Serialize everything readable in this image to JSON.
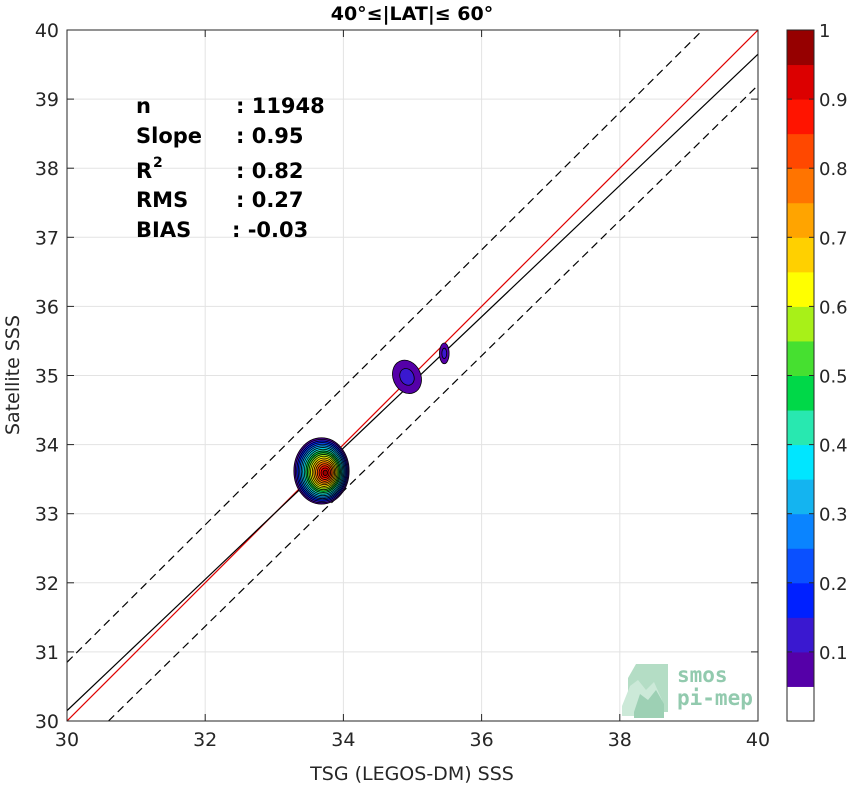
{
  "chart_data": {
    "type": "scatter",
    "title": "40°≤|LAT|≤ 60°",
    "xlabel": "TSG (LEGOS-DM) SSS",
    "ylabel": "Satellite SSS",
    "xlim": [
      30,
      40
    ],
    "ylim": [
      30,
      40
    ],
    "xticks": [
      "30",
      "32",
      "34",
      "36",
      "38",
      "40"
    ],
    "yticks": [
      "30",
      "31",
      "32",
      "33",
      "34",
      "35",
      "36",
      "37",
      "38",
      "39",
      "40"
    ],
    "grid": true,
    "stats": [
      {
        "label": "n",
        "value": ": 11948"
      },
      {
        "label": "Slope",
        "value": ": 0.95"
      },
      {
        "label": "R",
        "sup": "2",
        "value": ": 0.82"
      },
      {
        "label": "RMS",
        "value": ": 0.27"
      },
      {
        "label": "BIAS",
        "value": ": -0.03"
      }
    ],
    "lines": [
      {
        "role": "one-to-one",
        "color": "#e00000",
        "style": "solid",
        "x": [
          30,
          40
        ],
        "y": [
          30,
          40
        ]
      },
      {
        "role": "regression",
        "color": "#000000",
        "style": "solid",
        "x": [
          30,
          40
        ],
        "y": [
          30.15,
          39.65
        ]
      },
      {
        "role": "upper-bound",
        "color": "#000000",
        "style": "dashed",
        "x": [
          30,
          39.2
        ],
        "y": [
          30.85,
          40
        ]
      },
      {
        "role": "lower-bound",
        "color": "#000000",
        "style": "dashed",
        "x": [
          30.6,
          40
        ],
        "y": [
          30,
          39.2
        ]
      }
    ],
    "density_blobs": [
      {
        "cx": 33.68,
        "cy": 33.62,
        "rx": 0.4,
        "ry": 0.48,
        "peak": 1.0
      },
      {
        "cx": 34.92,
        "cy": 34.98,
        "rx": 0.2,
        "ry": 0.25,
        "peak": 0.1
      },
      {
        "cx": 35.46,
        "cy": 35.32,
        "rx": 0.07,
        "ry": 0.15,
        "peak": 0.1
      }
    ],
    "colorbar": {
      "range": [
        0,
        1
      ],
      "ticks": [
        "0.1",
        "0.2",
        "0.3",
        "0.4",
        "0.5",
        "0.6",
        "0.7",
        "0.8",
        "0.9",
        "1"
      ],
      "colors": [
        "#ffffff",
        "#5500a8",
        "#3a18d0",
        "#0020ff",
        "#0a50ff",
        "#0a84ff",
        "#14b4f0",
        "#00e6ff",
        "#28e8b0",
        "#00d848",
        "#46e030",
        "#a8f018",
        "#ffff00",
        "#ffd000",
        "#ffa400",
        "#ff7400",
        "#ff4800",
        "#ff1400",
        "#dc0000",
        "#960000"
      ]
    }
  },
  "logo": {
    "line1": "smos",
    "line2": "pi-mep"
  }
}
